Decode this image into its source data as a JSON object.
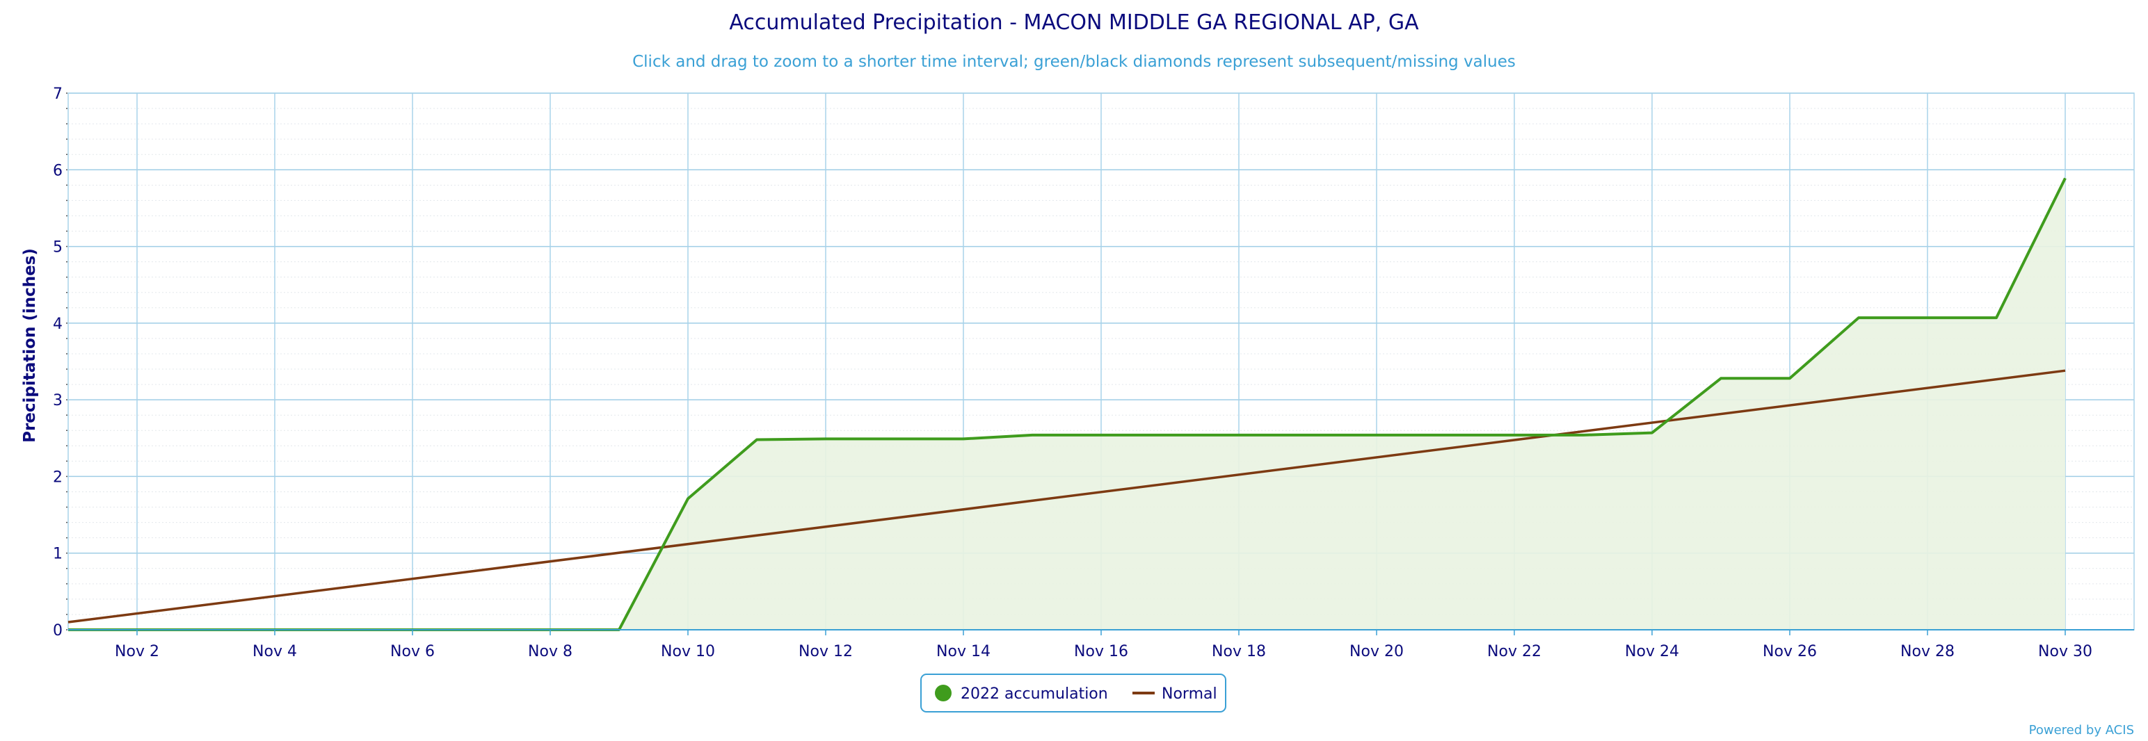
{
  "chart_data": {
    "type": "area",
    "title": "Accumulated Precipitation - MACON MIDDLE GA REGIONAL AP, GA",
    "subtitle": "Click and drag to zoom to a shorter time interval; green/black diamonds represent subsequent/missing values",
    "ylabel": "Precipitation (inches)",
    "xlabel": "",
    "xlim": [
      1,
      31
    ],
    "ylim": [
      0,
      7
    ],
    "y_ticks": [
      "0",
      "1",
      "2",
      "3",
      "4",
      "5",
      "6",
      "7"
    ],
    "x_ticks": [
      {
        "x": 2,
        "label": "Nov 2"
      },
      {
        "x": 4,
        "label": "Nov 4"
      },
      {
        "x": 6,
        "label": "Nov 6"
      },
      {
        "x": 8,
        "label": "Nov 8"
      },
      {
        "x": 10,
        "label": "Nov 10"
      },
      {
        "x": 12,
        "label": "Nov 12"
      },
      {
        "x": 14,
        "label": "Nov 14"
      },
      {
        "x": 16,
        "label": "Nov 16"
      },
      {
        "x": 18,
        "label": "Nov 18"
      },
      {
        "x": 20,
        "label": "Nov 20"
      },
      {
        "x": 22,
        "label": "Nov 22"
      },
      {
        "x": 24,
        "label": "Nov 24"
      },
      {
        "x": 26,
        "label": "Nov 26"
      },
      {
        "x": 28,
        "label": "Nov 28"
      },
      {
        "x": 30,
        "label": "Nov 30"
      }
    ],
    "grid": true,
    "legend_position": "bottom-center",
    "series": [
      {
        "name": "2022 accumulation",
        "color": "#3f9c1d",
        "fill": "#e9f3e1",
        "x": [
          1,
          2,
          3,
          4,
          5,
          6,
          7,
          8,
          9,
          10,
          11,
          12,
          13,
          14,
          15,
          16,
          17,
          18,
          19,
          20,
          21,
          22,
          23,
          24,
          25,
          26,
          27,
          28,
          29,
          30
        ],
        "values": [
          0,
          0,
          0,
          0,
          0,
          0,
          0,
          0,
          0,
          1.71,
          2.48,
          2.49,
          2.49,
          2.49,
          2.54,
          2.54,
          2.54,
          2.54,
          2.54,
          2.54,
          2.54,
          2.54,
          2.54,
          2.57,
          3.28,
          3.28,
          4.07,
          4.07,
          4.07,
          5.89
        ]
      },
      {
        "name": "Normal",
        "color": "#7d3a12",
        "x": [
          1,
          30
        ],
        "values": [
          0.1,
          3.38
        ]
      }
    ]
  },
  "credit": "Powered by ACIS"
}
